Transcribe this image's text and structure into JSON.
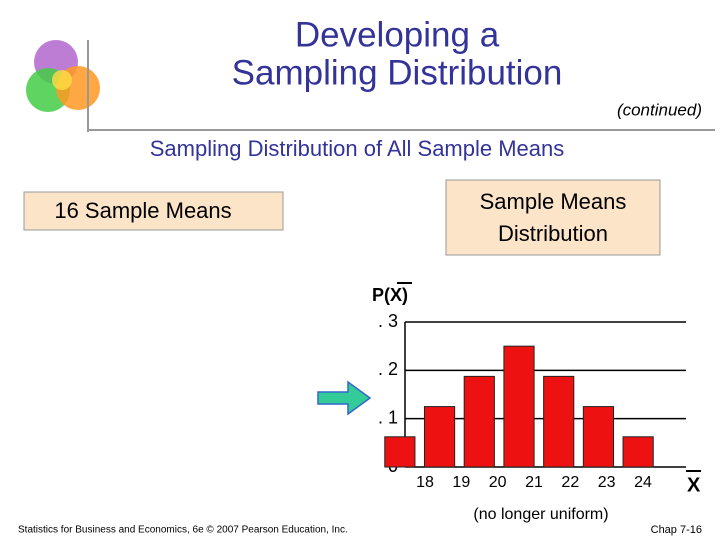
{
  "slide": {
    "title_lines": [
      "Developing a",
      "Sampling Distribution"
    ],
    "continued": "(continued)",
    "heading": "Sampling Distribution of All Sample Means",
    "left_box": "16 Sample Means",
    "right_box_lines": [
      "Sample Means",
      "Distribution"
    ],
    "footer": "Statistics for Business and Economics, 6e © 2007 Pearson Education, Inc.",
    "page": "Chap 7-16"
  },
  "chart_data": {
    "type": "bar",
    "y_label": "P(X)",
    "x_label": "X",
    "annotation": "(no longer uniform)",
    "categories": [
      "18",
      "19",
      "20",
      "21",
      "22",
      "23",
      "24"
    ],
    "values": [
      0.0625,
      0.125,
      0.1875,
      0.25,
      0.1875,
      0.125,
      0.0625
    ],
    "color": "#ee1111",
    "ylim": [
      0,
      0.3
    ],
    "yticks": [
      {
        "value": 0,
        "label": "0"
      },
      {
        "value": 0.1,
        "label": ". 1"
      },
      {
        "value": 0.2,
        "label": ". 2"
      },
      {
        "value": 0.3,
        "label": ". 3"
      }
    ],
    "grid": true
  }
}
